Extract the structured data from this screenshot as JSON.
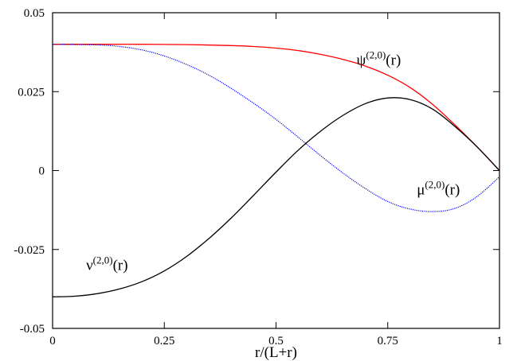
{
  "chart_data": {
    "type": "line",
    "title": "",
    "xlabel": "r/(L+r)",
    "ylabel": "",
    "xlim": [
      0,
      1
    ],
    "ylim": [
      -0.05,
      0.05
    ],
    "grid": false,
    "legend": "none",
    "x_ticks": [
      0,
      0.25,
      0.5,
      0.75,
      1
    ],
    "x_tick_labels": [
      "0",
      "0.25",
      "0.5",
      "0.75",
      "1"
    ],
    "y_ticks": [
      -0.05,
      -0.025,
      0,
      0.025,
      0.05
    ],
    "y_tick_labels": [
      "-0.05",
      "-0.025",
      "0",
      "0.025",
      "0.05"
    ],
    "series": [
      {
        "name": "ψ(2,0)(r)",
        "label_base": "ψ",
        "label_sup": "(2,0)",
        "label_tail": "(r)",
        "label_at": [
          0.68,
          0.0335
        ],
        "color": "#ff0000",
        "dash": "solid",
        "x": [
          0,
          0.1,
          0.2,
          0.3,
          0.4,
          0.45,
          0.5,
          0.55,
          0.6,
          0.65,
          0.7,
          0.75,
          0.8,
          0.85,
          0.9,
          0.95,
          1.0
        ],
        "y": [
          0.04,
          0.04,
          0.04,
          0.0399,
          0.0396,
          0.0393,
          0.0388,
          0.038,
          0.0368,
          0.0352,
          0.0331,
          0.0302,
          0.0263,
          0.021,
          0.0145,
          0.0075,
          0.0
        ]
      },
      {
        "name": "μ(2,0)(r)",
        "label_base": "μ",
        "label_sup": "(2,0)",
        "label_tail": "(r)",
        "label_at": [
          0.815,
          -0.0075
        ],
        "color": "#0000ff",
        "dash": "dotted",
        "x": [
          0,
          0.1,
          0.15,
          0.2,
          0.25,
          0.3,
          0.35,
          0.4,
          0.45,
          0.5,
          0.55,
          0.6,
          0.65,
          0.7,
          0.75,
          0.8,
          0.85,
          0.9,
          0.95,
          1.0
        ],
        "y": [
          0.04,
          0.0398,
          0.0393,
          0.0382,
          0.0363,
          0.0336,
          0.0302,
          0.026,
          0.0213,
          0.0162,
          0.0105,
          0.0047,
          -0.0008,
          -0.0057,
          -0.0098,
          -0.0122,
          -0.013,
          -0.012,
          -0.0082,
          -0.002
        ]
      },
      {
        "name": "ν(2,0)(r)",
        "label_base": "ν",
        "label_sup": "(2,0)",
        "label_tail": "(r)",
        "label_at": [
          0.075,
          -0.0315
        ],
        "color": "#000000",
        "dash": "solid",
        "x": [
          0,
          0.05,
          0.1,
          0.15,
          0.2,
          0.25,
          0.3,
          0.35,
          0.4,
          0.45,
          0.5,
          0.55,
          0.6,
          0.65,
          0.7,
          0.75,
          0.8,
          0.85,
          0.9,
          0.95,
          1.0
        ],
        "y": [
          -0.04,
          -0.0398,
          -0.039,
          -0.0375,
          -0.0352,
          -0.0318,
          -0.0272,
          -0.0215,
          -0.015,
          -0.0078,
          -0.0005,
          0.0065,
          0.0125,
          0.0175,
          0.0212,
          0.023,
          0.0225,
          0.0195,
          0.014,
          0.0075,
          0.0
        ]
      }
    ]
  }
}
